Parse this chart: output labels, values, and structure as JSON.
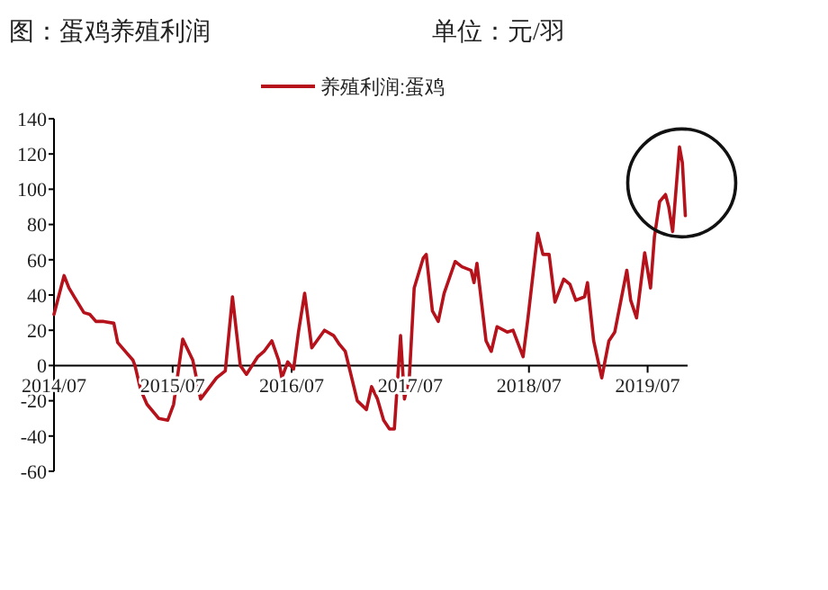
{
  "chart_data": {
    "type": "line",
    "title": "图：蛋鸡养殖利润",
    "subtitle": "单位：元/羽",
    "legend": "top",
    "grid": false,
    "marker": "none",
    "line_style": "solid",
    "x": [
      "2014-07-01",
      "2014-08-01",
      "2014-08-16",
      "2014-09-01",
      "2014-10-01",
      "2014-10-19",
      "2014-11-07",
      "2014-12-01",
      "2015-01-01",
      "2015-01-13",
      "2015-02-10",
      "2015-03-01",
      "2015-03-07",
      "2015-03-25",
      "2015-04-13",
      "2015-05-19",
      "2015-06-16",
      "2015-07-04",
      "2015-08-01",
      "2015-09-01",
      "2015-09-25",
      "2015-11-13",
      "2015-12-10",
      "2016-01-01",
      "2016-01-25",
      "2016-02-13",
      "2016-03-19",
      "2016-04-07",
      "2016-05-01",
      "2016-05-22",
      "2016-06-01",
      "2016-06-19",
      "2016-07-07",
      "2016-07-22",
      "2016-08-10",
      "2016-09-01",
      "2016-10-10",
      "2016-11-07",
      "2016-11-25",
      "2016-12-13",
      "2017-01-19",
      "2017-02-16",
      "2017-03-04",
      "2017-03-22",
      "2017-04-10",
      "2017-04-28",
      "2017-05-13",
      "2017-06-01",
      "2017-06-13",
      "2017-06-28",
      "2017-07-13",
      "2017-08-10",
      "2017-08-19",
      "2017-09-07",
      "2017-09-25",
      "2017-10-13",
      "2017-11-16",
      "2017-12-07",
      "2018-01-04",
      "2018-01-13",
      "2018-01-22",
      "2018-02-19",
      "2018-03-07",
      "2018-03-25",
      "2018-04-25",
      "2018-05-13",
      "2018-06-13",
      "2018-06-28",
      "2018-07-28",
      "2018-08-13",
      "2018-09-01",
      "2018-09-19",
      "2018-10-16",
      "2018-11-04",
      "2018-11-22",
      "2018-12-19",
      "2018-12-28",
      "2019-01-16",
      "2019-02-10",
      "2019-03-04",
      "2019-03-22",
      "2019-04-10",
      "2019-04-28",
      "2019-05-10",
      "2019-05-28",
      "2019-06-22",
      "2019-07-10",
      "2019-07-22",
      "2019-08-07",
      "2019-08-25",
      "2019-09-04",
      "2019-09-16",
      "2019-10-07",
      "2019-10-16",
      "2019-10-25"
    ],
    "series": [
      {
        "name": "养殖利润:蛋鸡",
        "color": "#b5121b",
        "values": [
          29,
          51,
          44,
          39,
          30,
          29,
          25,
          25,
          24,
          13,
          7,
          3,
          0,
          -14,
          -22,
          -30,
          -31,
          -22,
          15,
          3,
          -19,
          -7,
          -3,
          39,
          0,
          -5,
          5,
          8,
          14,
          3,
          -7,
          2,
          -2,
          19,
          41,
          10,
          20,
          17,
          12,
          8,
          -20,
          -25,
          -12,
          -19,
          -31,
          -36,
          -36,
          17,
          -19,
          -7,
          44,
          61,
          63,
          31,
          25,
          41,
          59,
          56,
          54,
          47,
          58,
          14,
          8,
          22,
          19,
          20,
          5,
          27,
          75,
          63,
          63,
          36,
          49,
          46,
          37,
          39,
          47,
          14,
          -7,
          14,
          19,
          37,
          54,
          37,
          27,
          64,
          44,
          73,
          93,
          97,
          90,
          76,
          124,
          115,
          85
        ]
      }
    ],
    "xlim": [
      "2014-07-01",
      "2019-11-01"
    ],
    "xticks": [
      {
        "value": "2014-07-01",
        "label": "2014/07"
      },
      {
        "value": "2015-07-01",
        "label": "2015/07"
      },
      {
        "value": "2016-07-01",
        "label": "2016/07"
      },
      {
        "value": "2017-07-01",
        "label": "2017/07"
      },
      {
        "value": "2018-07-01",
        "label": "2018/07"
      },
      {
        "value": "2019-07-01",
        "label": "2019/07"
      }
    ],
    "ylim": [
      -60,
      140
    ],
    "yticks": [
      -60,
      -40,
      -20,
      0,
      20,
      40,
      60,
      80,
      100,
      120,
      140
    ]
  }
}
